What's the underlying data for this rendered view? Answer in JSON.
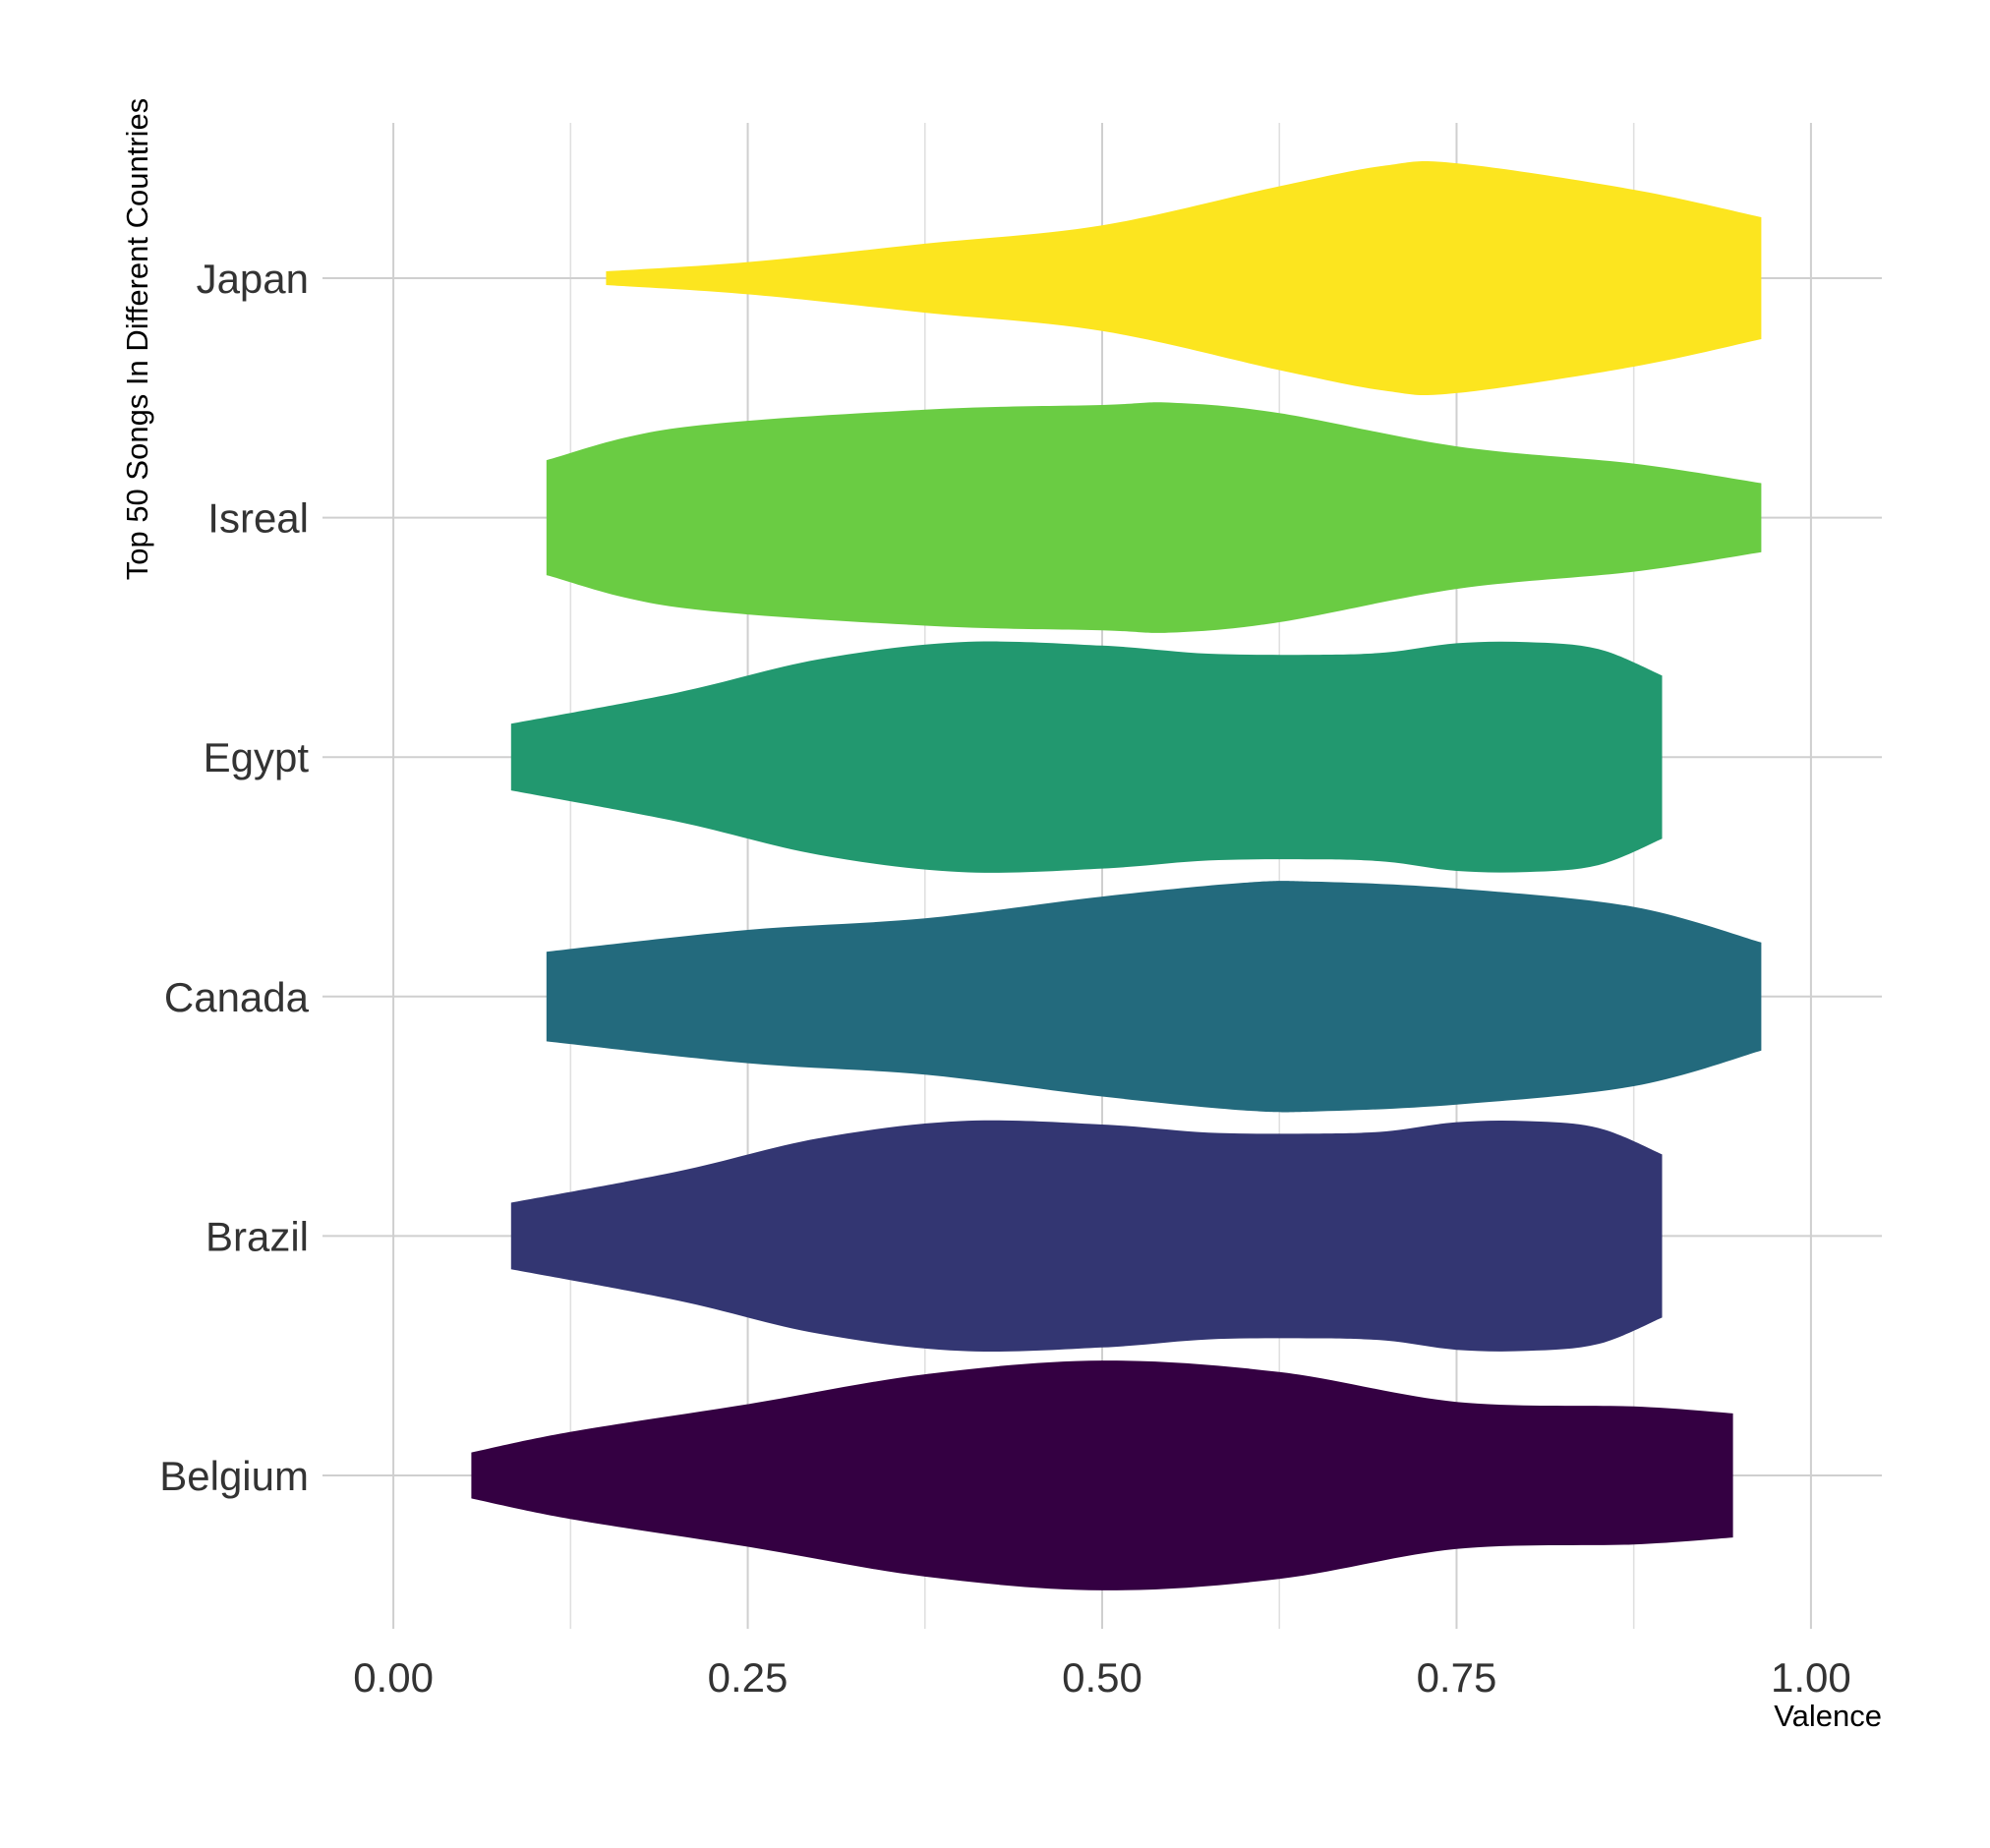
{
  "chart_data": {
    "type": "violin",
    "orientation": "horizontal",
    "xlabel": "Valence",
    "ylabel": "Top 50 Songs In Different Countries",
    "xlim": [
      -0.05,
      1.05
    ],
    "x_ticks": [
      0.0,
      0.25,
      0.5,
      0.75,
      1.0
    ],
    "x_tick_labels": [
      "0.00",
      "0.25",
      "0.50",
      "0.75",
      "1.00"
    ],
    "categories": [
      "Belgium",
      "Brazil",
      "Canada",
      "Egypt",
      "Isreal",
      "Japan"
    ],
    "grid": true,
    "legend": "none",
    "series": [
      {
        "name": "Belgium",
        "color": "#340042",
        "profile": [
          [
            0.055,
            0.2
          ],
          [
            0.125,
            0.38
          ],
          [
            0.25,
            0.62
          ],
          [
            0.375,
            0.88
          ],
          [
            0.5,
            1.0
          ],
          [
            0.625,
            0.9
          ],
          [
            0.75,
            0.64
          ],
          [
            0.875,
            0.6
          ],
          [
            0.945,
            0.54
          ]
        ]
      },
      {
        "name": "Brazil",
        "color": "#333672",
        "profile": [
          [
            0.083,
            0.29
          ],
          [
            0.2,
            0.56
          ],
          [
            0.3,
            0.85
          ],
          [
            0.4,
            1.0
          ],
          [
            0.5,
            0.97
          ],
          [
            0.575,
            0.9
          ],
          [
            0.65,
            0.89
          ],
          [
            0.7,
            0.91
          ],
          [
            0.75,
            0.99
          ],
          [
            0.8,
            1.0
          ],
          [
            0.85,
            0.94
          ],
          [
            0.895,
            0.71
          ]
        ]
      },
      {
        "name": "Canada",
        "color": "#236A7D",
        "profile": [
          [
            0.108,
            0.39
          ],
          [
            0.25,
            0.58
          ],
          [
            0.375,
            0.68
          ],
          [
            0.5,
            0.87
          ],
          [
            0.6,
            0.99
          ],
          [
            0.65,
            1.0
          ],
          [
            0.75,
            0.94
          ],
          [
            0.875,
            0.78
          ],
          [
            0.965,
            0.47
          ]
        ]
      },
      {
        "name": "Egypt",
        "color": "#22986F",
        "profile": [
          [
            0.083,
            0.29
          ],
          [
            0.2,
            0.56
          ],
          [
            0.3,
            0.85
          ],
          [
            0.4,
            1.0
          ],
          [
            0.5,
            0.97
          ],
          [
            0.575,
            0.9
          ],
          [
            0.65,
            0.89
          ],
          [
            0.7,
            0.91
          ],
          [
            0.75,
            0.99
          ],
          [
            0.8,
            1.0
          ],
          [
            0.85,
            0.94
          ],
          [
            0.895,
            0.71
          ]
        ]
      },
      {
        "name": "Isreal",
        "color": "#6ACC43",
        "profile": [
          [
            0.108,
            0.5
          ],
          [
            0.2,
            0.78
          ],
          [
            0.375,
            0.94
          ],
          [
            0.5,
            0.98
          ],
          [
            0.55,
            1.0
          ],
          [
            0.625,
            0.91
          ],
          [
            0.75,
            0.62
          ],
          [
            0.875,
            0.47
          ],
          [
            0.965,
            0.3
          ]
        ]
      },
      {
        "name": "Japan",
        "color": "#FCE51F",
        "profile": [
          [
            0.15,
            0.06
          ],
          [
            0.25,
            0.14
          ],
          [
            0.375,
            0.3
          ],
          [
            0.5,
            0.46
          ],
          [
            0.625,
            0.8
          ],
          [
            0.7,
            0.98
          ],
          [
            0.75,
            1.0
          ],
          [
            0.875,
            0.77
          ],
          [
            0.965,
            0.53
          ]
        ]
      }
    ]
  }
}
